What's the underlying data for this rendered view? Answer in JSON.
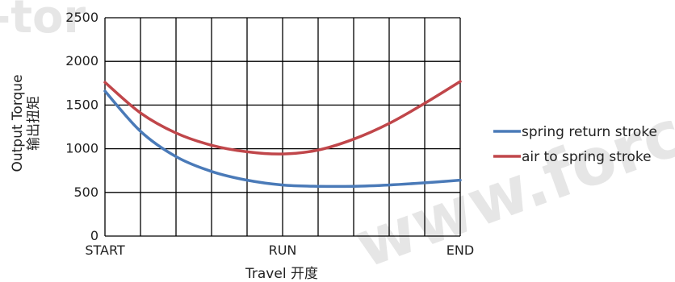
{
  "watermark": {
    "left_text": "-tor",
    "right_text": "www.forc"
  },
  "chart_data": {
    "type": "line",
    "title": "",
    "xlabel": "Travel 开度",
    "ylabel_line1": "Output Torque",
    "ylabel_line2": "输出扭矩",
    "x_tick_labels": [
      "START",
      "RUN",
      "END"
    ],
    "x_range": [
      0,
      100
    ],
    "x_tick_positions": [
      0,
      50,
      100
    ],
    "x_grid_divisions": 10,
    "ylim": [
      0,
      2500
    ],
    "y_ticks": [
      0,
      500,
      1000,
      1500,
      2000,
      2500
    ],
    "grid": true,
    "legend_position": "right",
    "series": [
      {
        "name": "spring return stroke",
        "color": "#4a7ab8",
        "x": [
          0,
          10,
          20,
          30,
          40,
          50,
          60,
          70,
          80,
          90,
          100
        ],
        "y": [
          1660,
          1200,
          910,
          740,
          640,
          585,
          570,
          570,
          585,
          610,
          640
        ]
      },
      {
        "name": "air to spring stroke",
        "color": "#c0464a",
        "x": [
          0,
          10,
          20,
          30,
          40,
          50,
          60,
          70,
          80,
          90,
          100
        ],
        "y": [
          1760,
          1410,
          1180,
          1040,
          965,
          940,
          985,
          1110,
          1290,
          1520,
          1770
        ]
      }
    ]
  }
}
